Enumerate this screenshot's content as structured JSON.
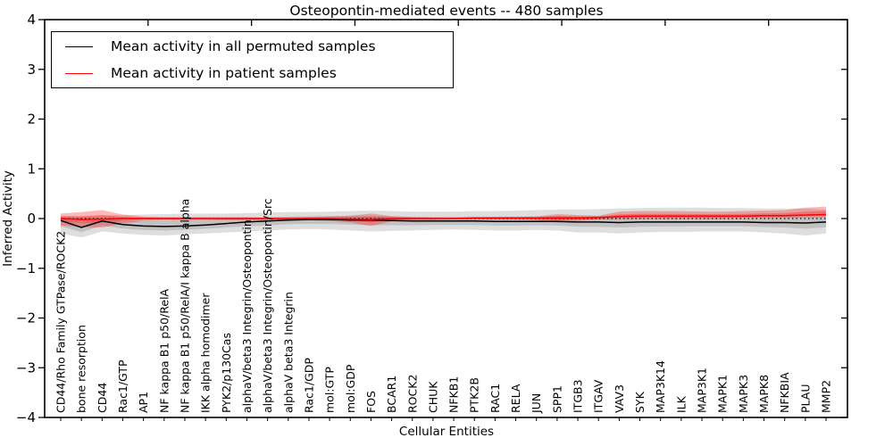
{
  "title": "Osteopontin-mediated events -- 480 samples",
  "xlabel": "Cellular Entities",
  "ylabel": "Inferred Activity",
  "legend": [
    {
      "label": "Mean activity in all permuted samples",
      "color": "#000000"
    },
    {
      "label": "Mean activity in patient samples",
      "color": "#ff0000"
    }
  ],
  "axes": {
    "ylim": [
      -4,
      4
    ],
    "yticks": [
      4,
      3,
      2,
      1,
      0,
      -1,
      -2,
      -3,
      -4
    ],
    "ytick_labels": [
      "4",
      "3",
      "2",
      "1",
      "0",
      "−1",
      "−2",
      "−3",
      "−4"
    ],
    "grid": false
  },
  "chart_data": {
    "type": "line",
    "title": "Osteopontin-mediated events -- 480 samples",
    "xlabel": "Cellular Entities",
    "ylabel": "Inferred Activity",
    "ylim": [
      -4,
      4
    ],
    "yticks": [
      4,
      3,
      2,
      1,
      0,
      -1,
      -2,
      -3,
      -4
    ],
    "zero_line": {
      "y": 0,
      "style": "dotted",
      "color": "#000000"
    },
    "legend_position": "upper left",
    "categories": [
      "CD44/Rho Family GTPase/ROCK2",
      "bone resorption",
      "CD44",
      "Rac1/GTP",
      "AP1",
      "NF kappa B1 p50/RelA",
      "NF kappa B1 p50/RelA/I kappa B alpha",
      "IKK alpha homodimer",
      "PYK2/p130Cas",
      "alphaV/beta3 Integrin/Osteopontin",
      "alphaV/beta3 Integrin/Osteopontin/Src",
      "alphaV beta3 Integrin",
      "Rac1/GDP",
      "mol:GTP",
      "mol:GDP",
      "FOS",
      "BCAR1",
      "ROCK2",
      "CHUK",
      "NFKB1",
      "PTK2B",
      "RAC1",
      "RELA",
      "JUN",
      "SPP1",
      "ITGB3",
      "ITGAV",
      "VAV3",
      "SYK",
      "MAP3K14",
      "ILK",
      "MAP3K1",
      "MAPK1",
      "MAPK3",
      "MAPK8",
      "NFKBIA",
      "PLAU",
      "MMP2"
    ],
    "series": [
      {
        "name": "Mean activity in all permuted samples",
        "color": "#000000",
        "band_color": "rgba(0,0,0,0.13)",
        "values": [
          -0.04,
          -0.18,
          -0.05,
          -0.12,
          -0.15,
          -0.16,
          -0.15,
          -0.13,
          -0.1,
          -0.07,
          -0.05,
          -0.03,
          -0.02,
          -0.02,
          -0.03,
          -0.03,
          -0.04,
          -0.05,
          -0.05,
          -0.05,
          -0.05,
          -0.06,
          -0.06,
          -0.06,
          -0.06,
          -0.07,
          -0.07,
          -0.08,
          -0.07,
          -0.07,
          -0.07,
          -0.07,
          -0.07,
          -0.07,
          -0.08,
          -0.08,
          -0.09,
          -0.07
        ],
        "band_lo": [
          -0.3,
          -0.38,
          -0.26,
          -0.3,
          -0.33,
          -0.34,
          -0.32,
          -0.3,
          -0.28,
          -0.26,
          -0.24,
          -0.22,
          -0.21,
          -0.22,
          -0.24,
          -0.26,
          -0.25,
          -0.24,
          -0.23,
          -0.22,
          -0.23,
          -0.24,
          -0.24,
          -0.23,
          -0.24,
          -0.28,
          -0.28,
          -0.3,
          -0.28,
          -0.27,
          -0.27,
          -0.26,
          -0.26,
          -0.26,
          -0.28,
          -0.3,
          -0.34,
          -0.3
        ],
        "band_hi": [
          0.06,
          0.04,
          0.06,
          0.07,
          0.08,
          0.09,
          0.1,
          0.1,
          0.1,
          0.11,
          0.12,
          0.13,
          0.13,
          0.14,
          0.15,
          0.16,
          0.15,
          0.14,
          0.14,
          0.14,
          0.15,
          0.15,
          0.16,
          0.17,
          0.18,
          0.18,
          0.19,
          0.2,
          0.21,
          0.22,
          0.22,
          0.22,
          0.21,
          0.21,
          0.2,
          0.2,
          0.2,
          0.18
        ]
      },
      {
        "name": "Mean activity in patient samples",
        "color": "#ff0000",
        "band_color": "rgba(255,0,0,0.28)",
        "values": [
          0.0,
          -0.02,
          -0.01,
          0.0,
          0.0,
          0.0,
          0.0,
          0.0,
          0.0,
          0.0,
          0.0,
          0.0,
          0.0,
          0.0,
          -0.01,
          -0.02,
          0.0,
          0.0,
          0.0,
          0.0,
          0.01,
          0.01,
          0.01,
          0.01,
          0.01,
          0.01,
          0.02,
          0.04,
          0.05,
          0.05,
          0.05,
          0.05,
          0.05,
          0.05,
          0.06,
          0.06,
          0.07,
          0.08
        ],
        "band_lo": [
          -0.14,
          -0.17,
          -0.18,
          -0.1,
          -0.05,
          -0.04,
          -0.04,
          -0.03,
          -0.03,
          -0.03,
          -0.03,
          -0.03,
          -0.03,
          -0.05,
          -0.08,
          -0.15,
          -0.06,
          -0.03,
          -0.03,
          -0.02,
          -0.02,
          -0.02,
          -0.02,
          -0.03,
          -0.08,
          -0.05,
          -0.02,
          -0.01,
          0.0,
          0.0,
          0.0,
          0.0,
          0.0,
          0.01,
          0.01,
          0.01,
          0.02,
          0.02
        ],
        "band_hi": [
          0.1,
          0.13,
          0.17,
          0.08,
          0.04,
          0.03,
          0.03,
          0.03,
          0.03,
          0.03,
          0.02,
          0.02,
          0.03,
          0.04,
          0.06,
          0.1,
          0.05,
          0.03,
          0.02,
          0.02,
          0.02,
          0.03,
          0.03,
          0.04,
          0.09,
          0.07,
          0.06,
          0.14,
          0.15,
          0.15,
          0.15,
          0.14,
          0.14,
          0.15,
          0.16,
          0.17,
          0.22,
          0.24
        ]
      }
    ]
  }
}
